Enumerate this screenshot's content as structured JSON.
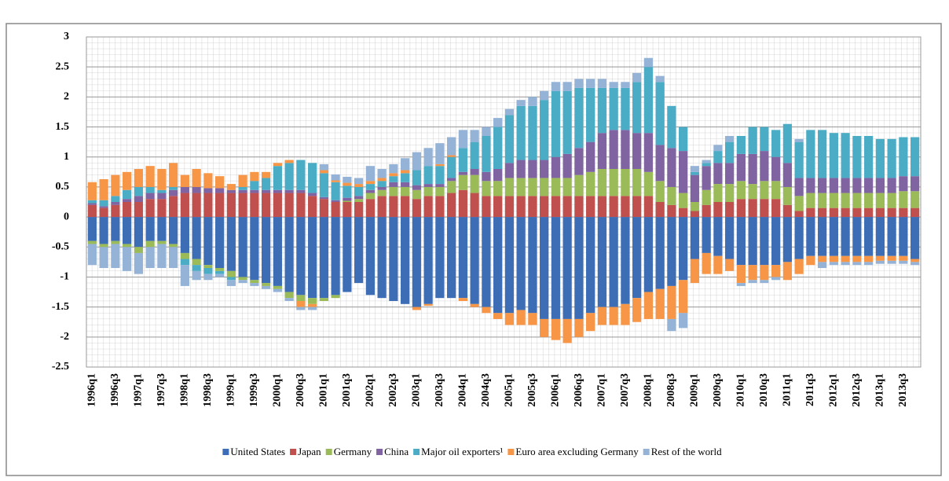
{
  "chart_data": {
    "type": "stacked_bar",
    "categories": [
      "1996q1",
      null,
      "1996q3",
      null,
      "1997q1",
      null,
      "1997q3",
      null,
      "1998q1",
      null,
      "1998q3",
      null,
      "1999q1",
      null,
      "1999q3",
      null,
      "2000q1",
      null,
      "2000q3",
      null,
      "2001q1",
      null,
      "2001q3",
      null,
      "2002q1",
      null,
      "2002q3",
      null,
      "2003q1",
      null,
      "2003q3",
      null,
      "2004q1",
      null,
      "2004q3",
      null,
      "2005q1",
      null,
      "2005q3",
      null,
      "2006q1",
      null,
      "2006q3",
      null,
      "2007q1",
      null,
      "2007q3",
      null,
      "2008q1",
      null,
      "2008q3",
      null,
      "2009q1",
      null,
      "2009q3",
      null,
      "2010q1",
      null,
      "2010q3",
      null,
      "2011q1",
      null,
      "2011q3",
      null,
      "2012q1",
      null,
      "2012q3",
      null,
      "2013q1",
      null,
      "2013q3",
      null
    ],
    "series": [
      {
        "name": "United States",
        "color": "#3d6db5",
        "values": [
          -0.4,
          -0.45,
          -0.4,
          -0.45,
          -0.5,
          -0.4,
          -0.4,
          -0.45,
          -0.6,
          -0.7,
          -0.8,
          -0.85,
          -0.9,
          -1.0,
          -1.05,
          -1.1,
          -1.15,
          -1.25,
          -1.3,
          -1.35,
          -1.35,
          -1.3,
          -1.25,
          -1.1,
          -1.3,
          -1.35,
          -1.4,
          -1.45,
          -1.5,
          -1.45,
          -1.35,
          -1.35,
          -1.35,
          -1.45,
          -1.5,
          -1.6,
          -1.6,
          -1.55,
          -1.6,
          -1.7,
          -1.7,
          -1.7,
          -1.7,
          -1.6,
          -1.5,
          -1.5,
          -1.45,
          -1.35,
          -1.25,
          -1.2,
          -1.15,
          -1.05,
          -0.7,
          -0.6,
          -0.65,
          -0.7,
          -0.8,
          -0.8,
          -0.8,
          -0.8,
          -0.75,
          -0.7,
          -0.65,
          -0.65,
          -0.65,
          -0.65,
          -0.65,
          -0.65,
          -0.65,
          -0.65,
          -0.65,
          -0.7
        ]
      },
      {
        "name": "Japan",
        "color": "#c0504d",
        "values": [
          0.2,
          0.15,
          0.2,
          0.25,
          0.25,
          0.3,
          0.3,
          0.35,
          0.4,
          0.4,
          0.4,
          0.4,
          0.4,
          0.4,
          0.4,
          0.4,
          0.4,
          0.4,
          0.4,
          0.35,
          0.3,
          0.25,
          0.25,
          0.25,
          0.3,
          0.35,
          0.35,
          0.35,
          0.3,
          0.35,
          0.35,
          0.4,
          0.45,
          0.4,
          0.35,
          0.35,
          0.35,
          0.35,
          0.35,
          0.35,
          0.35,
          0.35,
          0.35,
          0.35,
          0.35,
          0.35,
          0.35,
          0.35,
          0.35,
          0.25,
          0.2,
          0.15,
          0.1,
          0.2,
          0.25,
          0.25,
          0.3,
          0.3,
          0.3,
          0.3,
          0.2,
          0.1,
          0.15,
          0.15,
          0.15,
          0.15,
          0.15,
          0.15,
          0.15,
          0.15,
          0.15,
          0.15
        ]
      },
      {
        "name": "Germany",
        "color": "#9bbb59",
        "values": [
          -0.05,
          -0.05,
          -0.05,
          -0.05,
          -0.1,
          -0.1,
          -0.05,
          -0.05,
          -0.1,
          -0.1,
          -0.05,
          -0.05,
          -0.1,
          -0.05,
          -0.05,
          -0.05,
          -0.05,
          -0.1,
          -0.1,
          -0.1,
          -0.05,
          -0.05,
          0.02,
          0.05,
          0.1,
          0.1,
          0.15,
          0.15,
          0.15,
          0.15,
          0.15,
          0.2,
          0.25,
          0.3,
          0.25,
          0.25,
          0.3,
          0.3,
          0.3,
          0.3,
          0.3,
          0.3,
          0.35,
          0.4,
          0.45,
          0.45,
          0.45,
          0.45,
          0.4,
          0.35,
          0.3,
          0.25,
          0.15,
          0.25,
          0.3,
          0.3,
          0.3,
          0.25,
          0.3,
          0.3,
          0.3,
          0.25,
          0.25,
          0.25,
          0.25,
          0.25,
          0.25,
          0.25,
          0.25,
          0.25,
          0.28,
          0.28
        ]
      },
      {
        "name": "China",
        "color": "#8064a2",
        "values": [
          0.03,
          0.03,
          0.05,
          0.05,
          0.1,
          0.1,
          0.1,
          0.1,
          0.1,
          0.1,
          0.08,
          0.08,
          0.05,
          0.05,
          0.05,
          0.05,
          0.05,
          0.05,
          0.05,
          0.05,
          0.03,
          0.03,
          0.05,
          0.05,
          0.05,
          0.05,
          0.08,
          0.08,
          0.08,
          0.05,
          0.05,
          0.05,
          0.05,
          0.1,
          0.15,
          0.2,
          0.25,
          0.3,
          0.3,
          0.3,
          0.35,
          0.4,
          0.45,
          0.5,
          0.6,
          0.65,
          0.65,
          0.6,
          0.65,
          0.6,
          0.65,
          0.7,
          0.45,
          0.4,
          0.35,
          0.35,
          0.45,
          0.5,
          0.5,
          0.4,
          0.4,
          0.3,
          0.25,
          0.25,
          0.25,
          0.25,
          0.25,
          0.25,
          0.25,
          0.25,
          0.25,
          0.25
        ]
      },
      {
        "name": "Major oil exporters¹",
        "color": "#4bacc6",
        "values": [
          0.05,
          0.1,
          0.1,
          0.15,
          0.15,
          0.1,
          0.05,
          0.05,
          -0.1,
          -0.1,
          -0.1,
          -0.05,
          -0.05,
          0.05,
          0.15,
          0.2,
          0.4,
          0.45,
          0.5,
          0.5,
          0.4,
          0.3,
          0.2,
          0.15,
          0.1,
          0.1,
          0.1,
          0.15,
          0.25,
          0.3,
          0.3,
          0.35,
          0.4,
          0.45,
          0.6,
          0.7,
          0.8,
          0.9,
          0.9,
          1.0,
          1.1,
          1.05,
          1.0,
          0.9,
          0.75,
          0.7,
          0.7,
          0.85,
          1.1,
          1.05,
          0.7,
          0.4,
          0.05,
          0.05,
          0.2,
          0.35,
          0.3,
          0.45,
          0.4,
          0.45,
          0.65,
          0.6,
          0.8,
          0.8,
          0.75,
          0.75,
          0.7,
          0.7,
          0.65,
          0.65,
          0.65,
          0.65
        ]
      },
      {
        "name": "Euro area excluding Germany",
        "color": "#f79646",
        "values": [
          0.3,
          0.35,
          0.35,
          0.3,
          0.3,
          0.35,
          0.35,
          0.4,
          0.2,
          0.3,
          0.25,
          0.2,
          0.1,
          0.2,
          0.15,
          0.1,
          0.05,
          0.05,
          -0.1,
          -0.05,
          0.05,
          0.03,
          0.05,
          0.05,
          0.05,
          0.05,
          0.05,
          0.05,
          -0.05,
          -0.03,
          0.03,
          0.03,
          -0.05,
          -0.05,
          -0.1,
          -0.1,
          -0.2,
          -0.25,
          -0.2,
          -0.3,
          -0.35,
          -0.4,
          -0.3,
          -0.3,
          -0.3,
          -0.3,
          -0.35,
          -0.4,
          -0.45,
          -0.5,
          -0.55,
          -0.55,
          -0.4,
          -0.35,
          -0.3,
          -0.2,
          -0.3,
          -0.25,
          -0.25,
          -0.2,
          -0.3,
          -0.25,
          -0.15,
          -0.1,
          -0.1,
          -0.1,
          -0.1,
          -0.1,
          -0.08,
          -0.08,
          -0.08,
          -0.05
        ]
      },
      {
        "name": "Rest of the world",
        "color": "#95b3d7",
        "values": [
          -0.35,
          -0.35,
          -0.4,
          -0.4,
          -0.35,
          -0.35,
          -0.4,
          -0.35,
          -0.35,
          -0.15,
          -0.1,
          -0.05,
          -0.1,
          -0.05,
          -0.05,
          -0.05,
          -0.05,
          -0.05,
          -0.05,
          -0.05,
          0.1,
          0.1,
          0.1,
          0.1,
          0.25,
          0.15,
          0.15,
          0.2,
          0.3,
          0.3,
          0.35,
          0.3,
          0.3,
          0.2,
          0.15,
          0.15,
          0.1,
          0.1,
          0.15,
          0.15,
          0.15,
          0.15,
          0.15,
          0.15,
          0.15,
          0.1,
          0.1,
          0.15,
          0.15,
          0.1,
          -0.2,
          -0.25,
          0.1,
          0.05,
          0.1,
          0.1,
          -0.05,
          -0.05,
          -0.05,
          -0.05,
          0,
          0.05,
          0,
          -0.1,
          -0.05,
          -0.05,
          -0.05,
          -0.05,
          -0.05,
          -0.05,
          -0.05,
          -0.05
        ]
      }
    ],
    "ylim": [
      -2.5,
      3
    ],
    "yticks": [
      -2.5,
      -2,
      -1.5,
      -1,
      -0.5,
      0,
      0.5,
      1,
      1.5,
      2,
      2.5,
      3
    ],
    "grid": true,
    "legend": "bottom"
  }
}
